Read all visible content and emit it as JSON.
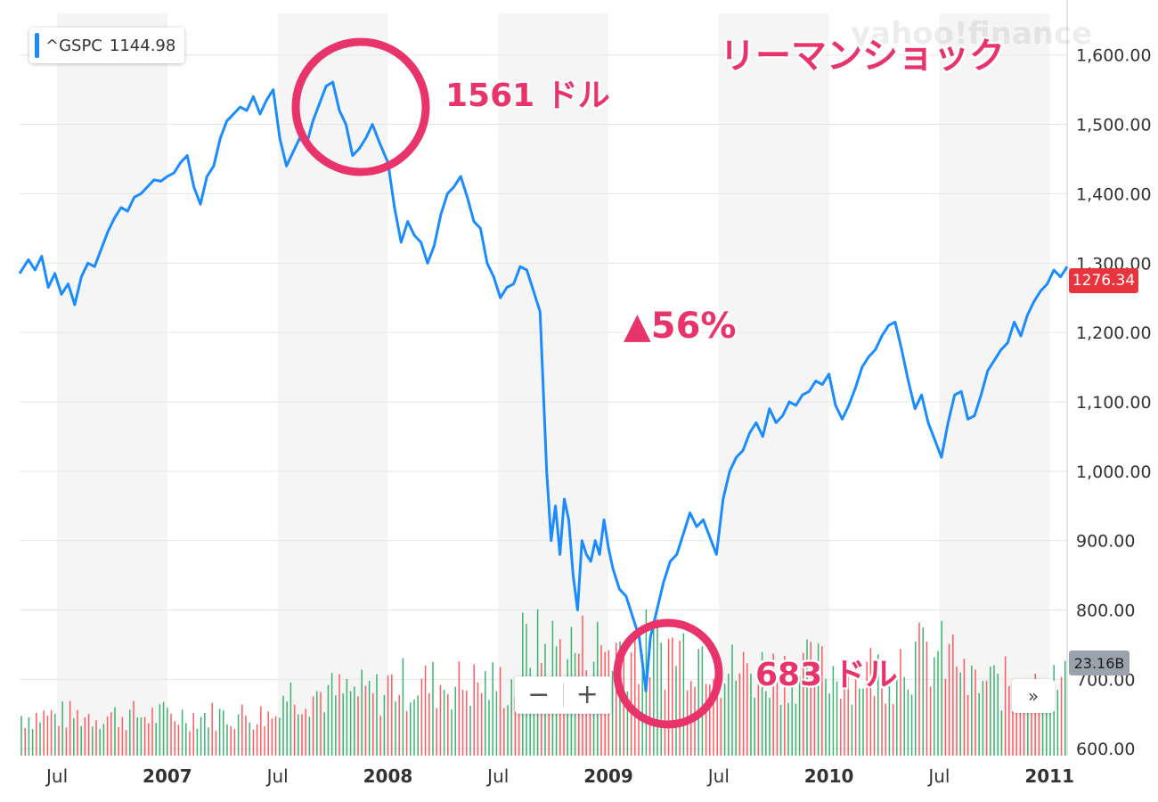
{
  "chart_data": {
    "type": "line",
    "symbol": "^GSPC",
    "legend_value": "1144.98",
    "last_price_label": "1276.34",
    "volume_label": "23.16B",
    "watermark": "yahoo!finance",
    "annotations": {
      "title": "リーマンショック",
      "peak": "1561 ドル",
      "drop": "▲56%",
      "low": "683 ドル"
    },
    "y_ticks": [
      "1,600.00",
      "1,500.00",
      "1,400.00",
      "1,300.00",
      "1,200.00",
      "1,100.00",
      "1,000.00",
      "900.00",
      "800.00",
      "700.00",
      "600.00"
    ],
    "y_tick_values": [
      1600,
      1500,
      1400,
      1300,
      1200,
      1100,
      1000,
      900,
      800,
      700,
      600
    ],
    "ylim": [
      590,
      1660
    ],
    "xlim": [
      2006.33,
      2011.08
    ],
    "x_ticks": [
      {
        "label": "Jul",
        "x": 2006.5,
        "major": false
      },
      {
        "label": "2007",
        "x": 2007.0,
        "major": true
      },
      {
        "label": "Jul",
        "x": 2007.5,
        "major": false
      },
      {
        "label": "2008",
        "x": 2008.0,
        "major": true
      },
      {
        "label": "Jul",
        "x": 2008.5,
        "major": false
      },
      {
        "label": "2009",
        "x": 2009.0,
        "major": true
      },
      {
        "label": "Jul",
        "x": 2009.5,
        "major": false
      },
      {
        "label": "2010",
        "x": 2010.0,
        "major": true
      },
      {
        "label": "Jul",
        "x": 2010.5,
        "major": false
      },
      {
        "label": "2011",
        "x": 2011.0,
        "major": true
      }
    ],
    "series": [
      {
        "color": "#1a8cff",
        "points": [
          [
            2006.33,
            1285
          ],
          [
            2006.37,
            1305
          ],
          [
            2006.4,
            1290
          ],
          [
            2006.43,
            1310
          ],
          [
            2006.46,
            1265
          ],
          [
            2006.49,
            1285
          ],
          [
            2006.52,
            1255
          ],
          [
            2006.55,
            1270
          ],
          [
            2006.58,
            1240
          ],
          [
            2006.61,
            1280
          ],
          [
            2006.64,
            1300
          ],
          [
            2006.67,
            1295
          ],
          [
            2006.7,
            1320
          ],
          [
            2006.73,
            1345
          ],
          [
            2006.76,
            1365
          ],
          [
            2006.79,
            1380
          ],
          [
            2006.82,
            1375
          ],
          [
            2006.85,
            1395
          ],
          [
            2006.88,
            1400
          ],
          [
            2006.91,
            1410
          ],
          [
            2006.94,
            1420
          ],
          [
            2006.97,
            1418
          ],
          [
            2007.0,
            1425
          ],
          [
            2007.03,
            1430
          ],
          [
            2007.06,
            1445
          ],
          [
            2007.09,
            1455
          ],
          [
            2007.12,
            1410
          ],
          [
            2007.15,
            1385
          ],
          [
            2007.18,
            1425
          ],
          [
            2007.21,
            1440
          ],
          [
            2007.24,
            1480
          ],
          [
            2007.27,
            1505
          ],
          [
            2007.3,
            1515
          ],
          [
            2007.33,
            1525
          ],
          [
            2007.36,
            1520
          ],
          [
            2007.39,
            1540
          ],
          [
            2007.42,
            1515
          ],
          [
            2007.45,
            1535
          ],
          [
            2007.48,
            1550
          ],
          [
            2007.51,
            1480
          ],
          [
            2007.54,
            1440
          ],
          [
            2007.57,
            1460
          ],
          [
            2007.6,
            1480
          ],
          [
            2007.63,
            1470
          ],
          [
            2007.66,
            1505
          ],
          [
            2007.69,
            1530
          ],
          [
            2007.72,
            1555
          ],
          [
            2007.75,
            1561
          ],
          [
            2007.78,
            1520
          ],
          [
            2007.81,
            1500
          ],
          [
            2007.84,
            1455
          ],
          [
            2007.87,
            1465
          ],
          [
            2007.9,
            1480
          ],
          [
            2007.93,
            1500
          ],
          [
            2007.96,
            1475
          ],
          [
            2008.0,
            1445
          ],
          [
            2008.03,
            1380
          ],
          [
            2008.06,
            1330
          ],
          [
            2008.09,
            1360
          ],
          [
            2008.12,
            1340
          ],
          [
            2008.15,
            1330
          ],
          [
            2008.18,
            1300
          ],
          [
            2008.21,
            1325
          ],
          [
            2008.24,
            1370
          ],
          [
            2008.27,
            1400
          ],
          [
            2008.3,
            1410
          ],
          [
            2008.33,
            1425
          ],
          [
            2008.36,
            1395
          ],
          [
            2008.39,
            1360
          ],
          [
            2008.42,
            1350
          ],
          [
            2008.45,
            1300
          ],
          [
            2008.48,
            1280
          ],
          [
            2008.51,
            1250
          ],
          [
            2008.54,
            1265
          ],
          [
            2008.57,
            1270
          ],
          [
            2008.6,
            1295
          ],
          [
            2008.63,
            1290
          ],
          [
            2008.66,
            1260
          ],
          [
            2008.69,
            1230
          ],
          [
            2008.72,
            1000
          ],
          [
            2008.74,
            900
          ],
          [
            2008.76,
            950
          ],
          [
            2008.78,
            880
          ],
          [
            2008.8,
            960
          ],
          [
            2008.82,
            930
          ],
          [
            2008.84,
            850
          ],
          [
            2008.86,
            800
          ],
          [
            2008.88,
            900
          ],
          [
            2008.9,
            880
          ],
          [
            2008.92,
            870
          ],
          [
            2008.94,
            900
          ],
          [
            2008.96,
            880
          ],
          [
            2008.98,
            930
          ],
          [
            2009.0,
            890
          ],
          [
            2009.02,
            860
          ],
          [
            2009.05,
            830
          ],
          [
            2009.08,
            820
          ],
          [
            2009.11,
            790
          ],
          [
            2009.14,
            760
          ],
          [
            2009.17,
            683
          ],
          [
            2009.19,
            760
          ],
          [
            2009.22,
            800
          ],
          [
            2009.25,
            840
          ],
          [
            2009.28,
            870
          ],
          [
            2009.31,
            880
          ],
          [
            2009.34,
            910
          ],
          [
            2009.37,
            940
          ],
          [
            2009.4,
            920
          ],
          [
            2009.43,
            930
          ],
          [
            2009.46,
            905
          ],
          [
            2009.49,
            880
          ],
          [
            2009.52,
            960
          ],
          [
            2009.55,
            1000
          ],
          [
            2009.58,
            1020
          ],
          [
            2009.61,
            1030
          ],
          [
            2009.64,
            1055
          ],
          [
            2009.67,
            1070
          ],
          [
            2009.7,
            1050
          ],
          [
            2009.73,
            1090
          ],
          [
            2009.76,
            1070
          ],
          [
            2009.79,
            1080
          ],
          [
            2009.82,
            1100
          ],
          [
            2009.85,
            1095
          ],
          [
            2009.88,
            1110
          ],
          [
            2009.91,
            1115
          ],
          [
            2009.94,
            1130
          ],
          [
            2009.97,
            1125
          ],
          [
            2010.0,
            1140
          ],
          [
            2010.03,
            1095
          ],
          [
            2010.06,
            1075
          ],
          [
            2010.09,
            1095
          ],
          [
            2010.12,
            1120
          ],
          [
            2010.15,
            1150
          ],
          [
            2010.18,
            1165
          ],
          [
            2010.21,
            1175
          ],
          [
            2010.24,
            1195
          ],
          [
            2010.27,
            1210
          ],
          [
            2010.3,
            1215
          ],
          [
            2010.33,
            1175
          ],
          [
            2010.36,
            1130
          ],
          [
            2010.39,
            1090
          ],
          [
            2010.42,
            1110
          ],
          [
            2010.45,
            1070
          ],
          [
            2010.48,
            1045
          ],
          [
            2010.51,
            1020
          ],
          [
            2010.54,
            1070
          ],
          [
            2010.57,
            1110
          ],
          [
            2010.6,
            1115
          ],
          [
            2010.63,
            1075
          ],
          [
            2010.66,
            1080
          ],
          [
            2010.69,
            1110
          ],
          [
            2010.72,
            1145
          ],
          [
            2010.75,
            1160
          ],
          [
            2010.78,
            1175
          ],
          [
            2010.81,
            1185
          ],
          [
            2010.84,
            1215
          ],
          [
            2010.87,
            1195
          ],
          [
            2010.9,
            1225
          ],
          [
            2010.93,
            1245
          ],
          [
            2010.96,
            1260
          ],
          [
            2010.99,
            1270
          ],
          [
            2011.02,
            1290
          ],
          [
            2011.05,
            1280
          ],
          [
            2011.08,
            1295
          ]
        ]
      }
    ],
    "volume_series": {
      "seed": 7,
      "up_color": "#3cb371",
      "down_color": "#ff5a5f"
    },
    "grid": true,
    "legend_position": "top-left"
  },
  "controls": {
    "zoom_out": "−",
    "zoom_in": "+",
    "fast_forward": "»"
  }
}
